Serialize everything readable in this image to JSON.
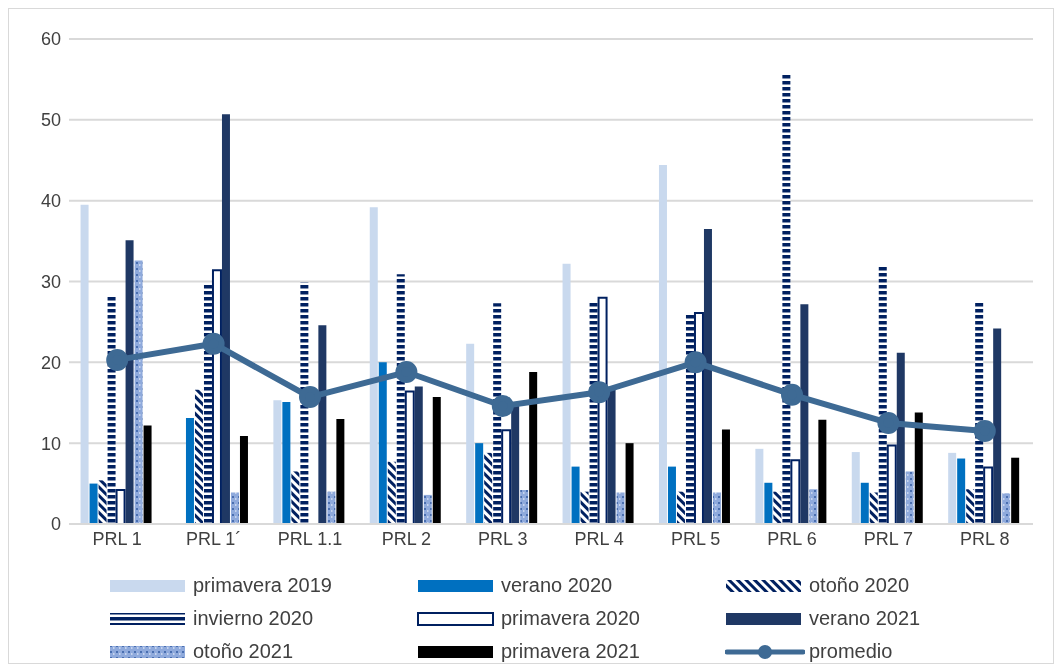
{
  "chart_data": {
    "type": "bar",
    "categories": [
      "PRL 1",
      "PRL 1´",
      "PRL 1.1",
      "PRL 2",
      "PRL 3",
      "PRL 4",
      "PRL 5",
      "PRL 6",
      "PRL 7",
      "PRL 8"
    ],
    "series": [
      {
        "name": "primavera 2019",
        "color": "#c9d9ee",
        "values": [
          39.5,
          null,
          15.3,
          39.2,
          22.3,
          32.2,
          44.4,
          9.3,
          8.9,
          8.8
        ]
      },
      {
        "name": "verano 2020",
        "color": "#0070c0",
        "values": [
          5.0,
          13.1,
          15.1,
          20.0,
          10.0,
          7.1,
          7.1,
          5.1,
          5.1,
          8.1
        ]
      },
      {
        "name": "otoño 2020",
        "color": "#002060",
        "values": [
          5.4,
          16.6,
          6.5,
          7.7,
          8.8,
          4.0,
          4.0,
          4.0,
          3.9,
          4.3
        ]
      },
      {
        "name": "invierno 2020",
        "color": "#002060",
        "values": [
          28.3,
          29.7,
          29.9,
          30.9,
          27.3,
          27.4,
          26.0,
          55.8,
          31.9,
          27.4
        ]
      },
      {
        "name": "primavera 2020",
        "color": "#002060",
        "values": [
          4.2,
          31.4,
          null,
          16.4,
          11.6,
          28.0,
          26.1,
          7.9,
          9.7,
          7.0
        ]
      },
      {
        "name": "verano 2021",
        "color": "#1f3864",
        "values": [
          35.1,
          50.7,
          24.6,
          17.0,
          14.7,
          16.6,
          36.5,
          27.2,
          21.2,
          24.2
        ]
      },
      {
        "name": "otoño 2021",
        "color": "#8faadc",
        "values": [
          32.6,
          3.9,
          4.0,
          3.6,
          4.2,
          3.9,
          3.9,
          4.3,
          6.5,
          3.8
        ]
      },
      {
        "name": "primavera 2021",
        "color": "#000000",
        "values": [
          12.2,
          10.9,
          13.0,
          15.7,
          18.8,
          10.0,
          11.7,
          12.9,
          13.8,
          8.2
        ]
      },
      {
        "name": "promedio",
        "type": "line",
        "color": "#3e6a94",
        "values": [
          20.3,
          22.3,
          15.7,
          18.8,
          14.6,
          16.3,
          20.0,
          16.0,
          12.5,
          11.5
        ]
      }
    ],
    "ylim": [
      0,
      60
    ],
    "yticks": [
      0,
      10,
      20,
      30,
      40,
      50,
      60
    ],
    "grid": "y",
    "legend": "bottom",
    "marker": "circle"
  }
}
